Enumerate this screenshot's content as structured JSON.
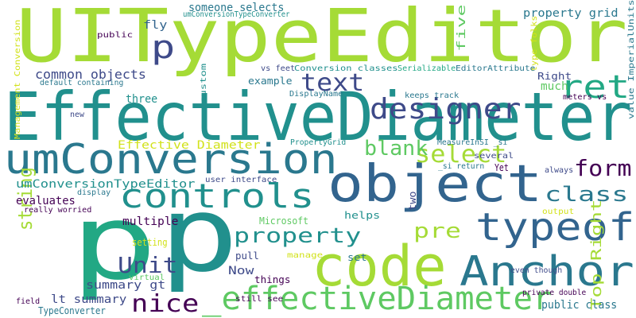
{
  "palette": {
    "background": "#ffffff",
    "c1": "#a5db36",
    "c2": "#21908d",
    "c3": "#32648e",
    "c4": "#440154",
    "c5": "#3e4a89",
    "c6": "#5ec962",
    "c7": "#fde725",
    "c8": "#2a788e",
    "c9": "#22a884",
    "c10": "#482878"
  },
  "words": [
    {
      "text": "UITypeEditor",
      "color": "#a5db36"
    },
    {
      "text": "EffectiveDiameter",
      "color": "#21908d"
    },
    {
      "text": "umConversion",
      "color": "#2a788e"
    },
    {
      "text": "object",
      "color": "#32648e"
    },
    {
      "text": "p",
      "color": "#22a884"
    },
    {
      "text": "p",
      "color": "#21908d"
    },
    {
      "text": "code",
      "color": "#a5db36"
    },
    {
      "text": "Anchor",
      "color": "#2a788e"
    },
    {
      "text": "_effectiveDiameter",
      "color": "#5ec962"
    },
    {
      "text": "controls",
      "color": "#21908d"
    },
    {
      "text": "typeof",
      "color": "#32648e"
    },
    {
      "text": "designer",
      "color": "#3e4a89"
    },
    {
      "text": "ret",
      "color": "#22a884"
    },
    {
      "text": "text",
      "color": "#3e4a89"
    },
    {
      "text": "p",
      "color": "#3e4a89"
    },
    {
      "text": "select",
      "color": "#a5db36"
    },
    {
      "text": "blank",
      "color": "#5ec962"
    },
    {
      "text": "form",
      "color": "#440154"
    },
    {
      "text": "class",
      "color": "#2a788e"
    },
    {
      "text": "property",
      "color": "#21908d"
    },
    {
      "text": "pre",
      "color": "#a5db36"
    },
    {
      "text": "Unit",
      "color": "#3e4a89"
    },
    {
      "text": "nice",
      "color": "#440154"
    },
    {
      "text": "string",
      "color": "#a5db36"
    },
    {
      "text": "Top Right",
      "color": "#a5db36"
    },
    {
      "text": "Management Conversion",
      "color": "#d2e21b"
    },
    {
      "text": "type folks",
      "color": "#d2e21b"
    },
    {
      "text": "value ImperialUnits",
      "color": "#2a788e"
    },
    {
      "text": "fly",
      "color": "#32648e"
    },
    {
      "text": "someone selects",
      "color": "#2a788e"
    },
    {
      "text": "umConversionTypeConverter",
      "color": "#21908d"
    },
    {
      "text": "five",
      "color": "#5ec962"
    },
    {
      "text": "property grid",
      "color": "#2a788e"
    },
    {
      "text": "public",
      "color": "#440154"
    },
    {
      "text": "common objects",
      "color": "#3e4a89"
    },
    {
      "text": "default containing",
      "color": "#2a788e"
    },
    {
      "text": "vs feet",
      "color": "#3e4a89"
    },
    {
      "text": "Conversion classes",
      "color": "#21908d"
    },
    {
      "text": "Serializable",
      "color": "#22a884"
    },
    {
      "text": "EditorAttribute",
      "color": "#2a788e"
    },
    {
      "text": "Right",
      "color": "#3e4a89"
    },
    {
      "text": "custom",
      "color": "#21908d"
    },
    {
      "text": "example",
      "color": "#2a788e"
    },
    {
      "text": "DisplayName",
      "color": "#2a788e"
    },
    {
      "text": "keeps track",
      "color": "#2a788e"
    },
    {
      "text": "much",
      "color": "#5ec962"
    },
    {
      "text": "meters vs",
      "color": "#440154"
    },
    {
      "text": "three",
      "color": "#21908d"
    },
    {
      "text": "new",
      "color": "#3e4a89"
    },
    {
      "text": "Effective Diameter",
      "color": "#d2e21b"
    },
    {
      "text": "PropertyGrid",
      "color": "#21908d"
    },
    {
      "text": "MeasureInSI _si",
      "color": "#2a788e"
    },
    {
      "text": "several",
      "color": "#3e4a89"
    },
    {
      "text": "_si return",
      "color": "#2a788e"
    },
    {
      "text": "Yet",
      "color": "#440154"
    },
    {
      "text": "always",
      "color": "#3e4a89"
    },
    {
      "text": "umConversionTypeEditor",
      "color": "#21908d"
    },
    {
      "text": "user interface",
      "color": "#3e4a89"
    },
    {
      "text": "evaluates",
      "color": "#440154"
    },
    {
      "text": "display",
      "color": "#2a788e"
    },
    {
      "text": "really worried",
      "color": "#440154"
    },
    {
      "text": "two",
      "color": "#3e4a89"
    },
    {
      "text": "helps",
      "color": "#21908d"
    },
    {
      "text": "output",
      "color": "#d2e21b"
    },
    {
      "text": "multiple",
      "color": "#440154"
    },
    {
      "text": "Microsoft",
      "color": "#5ec962"
    },
    {
      "text": "setting",
      "color": "#d2e21b"
    },
    {
      "text": "pull",
      "color": "#3e4a89"
    },
    {
      "text": "manage",
      "color": "#d2e21b"
    },
    {
      "text": "set",
      "color": "#2a788e"
    },
    {
      "text": "even though",
      "color": "#3e4a89"
    },
    {
      "text": "Now",
      "color": "#3e4a89"
    },
    {
      "text": "things",
      "color": "#440154"
    },
    {
      "text": "summary gt",
      "color": "#3e4a89"
    },
    {
      "text": "virtual",
      "color": "#5ec962"
    },
    {
      "text": "public class",
      "color": "#2a788e"
    },
    {
      "text": "lt summary",
      "color": "#3e4a89"
    },
    {
      "text": "field",
      "color": "#440154"
    },
    {
      "text": "still see",
      "color": "#440154"
    },
    {
      "text": "private double",
      "color": "#440154"
    },
    {
      "text": "TypeConverter",
      "color": "#2a788e"
    }
  ]
}
